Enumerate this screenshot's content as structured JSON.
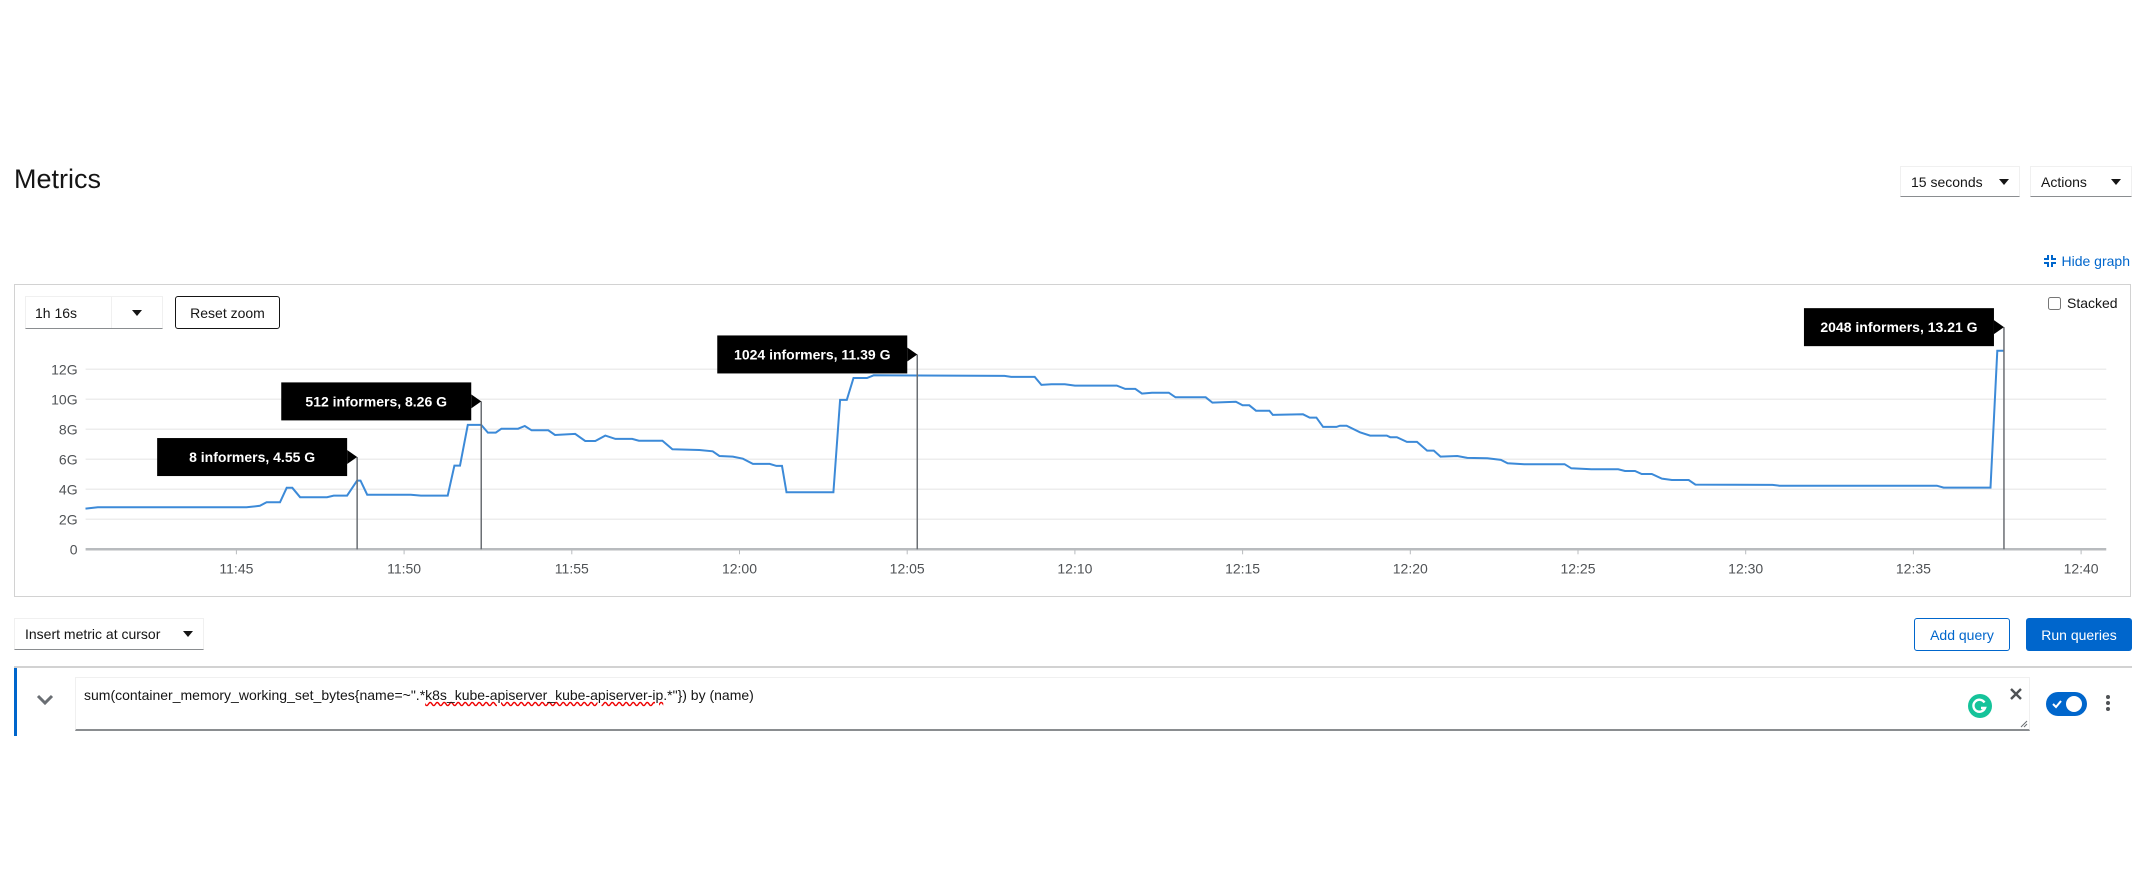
{
  "page": {
    "title": "Metrics"
  },
  "header": {
    "refresh_interval": "15 seconds",
    "actions_label": "Actions"
  },
  "graph_controls": {
    "hide_graph_label": "Hide graph",
    "time_range": "1h 16s",
    "reset_zoom_label": "Reset zoom",
    "stacked_label": "Stacked",
    "stacked_checked": false
  },
  "chart_data": {
    "type": "line",
    "title": "",
    "xlabel": "",
    "ylabel": "",
    "xlim": [
      "11:40:30",
      "12:40:45"
    ],
    "ylim": [
      0,
      13.5
    ],
    "yticks": [
      0,
      2,
      4,
      6,
      8,
      10,
      12
    ],
    "ytick_labels": [
      "0",
      "2G",
      "4G",
      "6G",
      "8G",
      "10G",
      "12G"
    ],
    "xticks": [
      "11:45",
      "11:50",
      "11:55",
      "12:00",
      "12:05",
      "12:10",
      "12:15",
      "12:20",
      "12:25",
      "12:30",
      "12:35",
      "12:40"
    ],
    "grid": true,
    "colors": {
      "series": "#3c8ad8",
      "annotation_bg": "#000000",
      "grid": "#ededed",
      "axis": "#b8bbbe"
    },
    "series": [
      {
        "points": [
          [
            "11:40:30",
            2.71
          ],
          [
            "11:40:52",
            2.8
          ],
          [
            "11:45:18",
            2.8
          ],
          [
            "11:45:42",
            2.9
          ],
          [
            "11:45:54",
            3.13
          ],
          [
            "11:46:18",
            3.13
          ],
          [
            "11:46:30",
            4.1
          ],
          [
            "11:46:40",
            4.1
          ],
          [
            "11:46:54",
            3.47
          ],
          [
            "11:47:42",
            3.47
          ],
          [
            "11:47:54",
            3.58
          ],
          [
            "11:48:18",
            3.58
          ],
          [
            "11:48:36",
            4.58
          ],
          [
            "11:48:42",
            4.58
          ],
          [
            "11:48:54",
            3.64
          ],
          [
            "11:50:12",
            3.64
          ],
          [
            "11:50:30",
            3.58
          ],
          [
            "11:51:18",
            3.58
          ],
          [
            "11:51:30",
            5.58
          ],
          [
            "11:51:40",
            5.58
          ],
          [
            "11:51:54",
            8.29
          ],
          [
            "11:52:18",
            8.29
          ],
          [
            "11:52:30",
            7.78
          ],
          [
            "11:52:44",
            7.78
          ],
          [
            "11:52:54",
            8.04
          ],
          [
            "11:53:24",
            8.04
          ],
          [
            "11:53:36",
            8.22
          ],
          [
            "11:53:48",
            7.93
          ],
          [
            "11:54:18",
            7.93
          ],
          [
            "11:54:30",
            7.62
          ],
          [
            "11:55:06",
            7.69
          ],
          [
            "11:55:24",
            7.22
          ],
          [
            "11:55:42",
            7.22
          ],
          [
            "11:56:00",
            7.58
          ],
          [
            "11:56:18",
            7.36
          ],
          [
            "11:56:48",
            7.36
          ],
          [
            "11:57:00",
            7.24
          ],
          [
            "11:57:42",
            7.24
          ],
          [
            "11:58:00",
            6.67
          ],
          [
            "11:58:48",
            6.62
          ],
          [
            "11:59:12",
            6.53
          ],
          [
            "11:59:24",
            6.22
          ],
          [
            "11:59:48",
            6.18
          ],
          [
            "12:00:06",
            6.04
          ],
          [
            "12:00:24",
            5.69
          ],
          [
            "12:00:54",
            5.69
          ],
          [
            "12:01:06",
            5.56
          ],
          [
            "12:01:16",
            5.56
          ],
          [
            "12:01:24",
            3.8
          ],
          [
            "12:02:48",
            3.8
          ],
          [
            "12:03:00",
            9.96
          ],
          [
            "12:03:12",
            9.96
          ],
          [
            "12:03:24",
            11.42
          ],
          [
            "12:03:48",
            11.42
          ],
          [
            "12:04:00",
            11.6
          ],
          [
            "12:07:54",
            11.56
          ],
          [
            "12:08:06",
            11.49
          ],
          [
            "12:08:48",
            11.49
          ],
          [
            "12:09:00",
            10.96
          ],
          [
            "12:09:18",
            11.0
          ],
          [
            "12:09:42",
            11.0
          ],
          [
            "12:10:00",
            10.91
          ],
          [
            "12:11:15",
            10.91
          ],
          [
            "12:11:30",
            10.69
          ],
          [
            "12:11:48",
            10.69
          ],
          [
            "12:12:00",
            10.38
          ],
          [
            "12:12:18",
            10.44
          ],
          [
            "12:12:48",
            10.44
          ],
          [
            "12:13:00",
            10.13
          ],
          [
            "12:13:54",
            10.13
          ],
          [
            "12:14:06",
            9.78
          ],
          [
            "12:14:48",
            9.84
          ],
          [
            "12:15:00",
            9.6
          ],
          [
            "12:15:12",
            9.6
          ],
          [
            "12:15:24",
            9.24
          ],
          [
            "12:15:48",
            9.24
          ],
          [
            "12:15:54",
            8.96
          ],
          [
            "12:16:48",
            9.0
          ],
          [
            "12:17:00",
            8.78
          ],
          [
            "12:17:12",
            8.78
          ],
          [
            "12:17:24",
            8.16
          ],
          [
            "12:17:48",
            8.16
          ],
          [
            "12:17:54",
            8.24
          ],
          [
            "12:18:06",
            8.24
          ],
          [
            "12:18:30",
            7.8
          ],
          [
            "12:18:48",
            7.58
          ],
          [
            "12:19:18",
            7.58
          ],
          [
            "12:19:24",
            7.47
          ],
          [
            "12:19:36",
            7.47
          ],
          [
            "12:19:54",
            7.16
          ],
          [
            "12:20:12",
            7.16
          ],
          [
            "12:20:30",
            6.58
          ],
          [
            "12:20:42",
            6.58
          ],
          [
            "12:20:54",
            6.18
          ],
          [
            "12:21:24",
            6.22
          ],
          [
            "12:21:42",
            6.09
          ],
          [
            "12:22:18",
            6.07
          ],
          [
            "12:22:42",
            5.96
          ],
          [
            "12:22:54",
            5.73
          ],
          [
            "12:23:24",
            5.67
          ],
          [
            "12:24:36",
            5.67
          ],
          [
            "12:24:48",
            5.4
          ],
          [
            "12:25:24",
            5.33
          ],
          [
            "12:26:12",
            5.33
          ],
          [
            "12:26:24",
            5.22
          ],
          [
            "12:26:42",
            5.22
          ],
          [
            "12:26:54",
            5.02
          ],
          [
            "12:27:12",
            5.02
          ],
          [
            "12:27:30",
            4.71
          ],
          [
            "12:27:48",
            4.62
          ],
          [
            "12:28:18",
            4.62
          ],
          [
            "12:28:30",
            4.31
          ],
          [
            "12:30:48",
            4.29
          ],
          [
            "12:31:00",
            4.24
          ],
          [
            "12:35:42",
            4.24
          ],
          [
            "12:35:54",
            4.11
          ],
          [
            "12:37:18",
            4.11
          ],
          [
            "12:37:30",
            13.24
          ],
          [
            "12:37:42",
            13.24
          ]
        ]
      }
    ],
    "annotations": [
      {
        "label": "8 informers, 4.55 G",
        "time": "11:48:36",
        "value": 4.55
      },
      {
        "label": "512 informers, 8.26 G",
        "time": "11:52:18",
        "value": 8.26
      },
      {
        "label": "1024 informers, 11.39 G",
        "time": "12:05:18",
        "value": 11.39
      },
      {
        "label": "2048 informers, 13.21 G",
        "time": "12:37:42",
        "value": 13.21
      }
    ]
  },
  "query_toolbar": {
    "insert_metric_label": "Insert metric at cursor",
    "add_query_label": "Add query",
    "run_queries_label": "Run queries"
  },
  "query": {
    "expr_before": "sum(container_memory_working_set_bytes{name=~\".*",
    "expr_misspelled": "k8s_kube-apiserver_kube-apiserver-ip",
    "expr_after": ".*\"}) by (name)",
    "enabled": true
  },
  "icons": {
    "expand": "chevron-down-icon",
    "clear": "close-icon",
    "kebab": "kebab-icon",
    "hide": "compress-icon",
    "grammarly": "grammarly-icon"
  }
}
